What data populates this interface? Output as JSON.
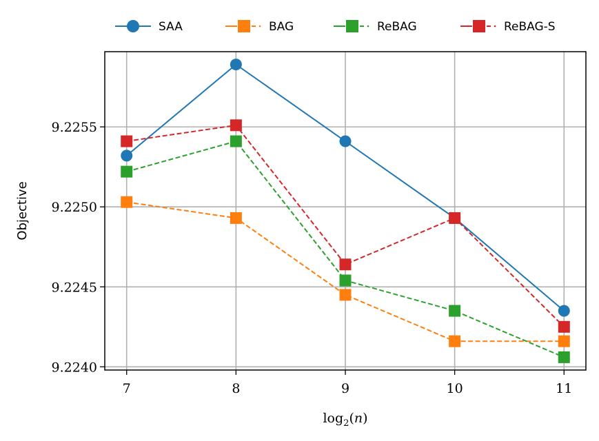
{
  "chart_data": {
    "type": "line",
    "x": [
      7,
      8,
      9,
      10,
      11
    ],
    "xlabel": "log2(n)",
    "ylabel": "Objective",
    "xlim": [
      6.8,
      11.2
    ],
    "ylim": [
      9.22398,
      9.22597
    ],
    "xticks": [
      7,
      8,
      9,
      10,
      11
    ],
    "xtick_labels": [
      "7",
      "8",
      "9",
      "10",
      "11"
    ],
    "yticks": [
      9.224,
      9.2245,
      9.225,
      9.2255
    ],
    "ytick_labels": [
      "9.2240",
      "9.2245",
      "9.2250",
      "9.2255"
    ],
    "grid": true,
    "legend_position": "top, above plot",
    "series": [
      {
        "name": "SAA",
        "color": "#1f77b4",
        "marker": "circle",
        "linestyle": "solid",
        "values": [
          9.22532,
          9.22589,
          9.22541,
          9.22493,
          9.22435
        ]
      },
      {
        "name": "BAG",
        "color": "#ff7f0e",
        "marker": "square",
        "linestyle": "dashed",
        "values": [
          9.22503,
          9.22493,
          9.22445,
          9.22416,
          9.22416
        ]
      },
      {
        "name": "ReBAG",
        "color": "#2ca02c",
        "marker": "square",
        "linestyle": "dashed",
        "values": [
          9.22522,
          9.22541,
          9.22454,
          9.22435,
          9.22406
        ]
      },
      {
        "name": "ReBAG-S",
        "color": "#d62728",
        "marker": "square",
        "linestyle": "dashed",
        "values": [
          9.22541,
          9.22551,
          9.22464,
          9.22493,
          9.22425
        ]
      }
    ]
  }
}
